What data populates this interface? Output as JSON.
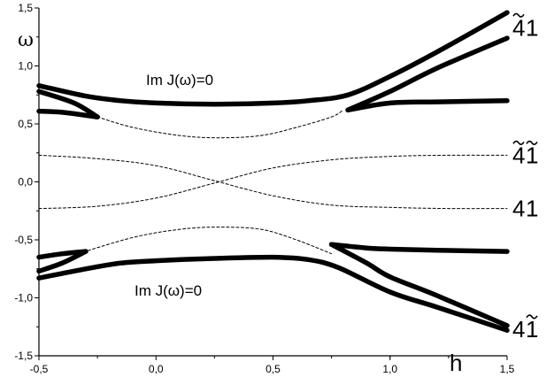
{
  "chart_data": {
    "type": "line",
    "xlabel": "h",
    "ylabel": "ω",
    "xlim": [
      -0.5,
      1.5
    ],
    "ylim": [
      -1.5,
      1.5
    ],
    "x_ticks": [
      "-0,5",
      "0,0",
      "0,5",
      "1,0",
      "1,5"
    ],
    "y_ticks": [
      "-1,5",
      "-1,0",
      "-0,5",
      "0,0",
      "0,5",
      "1,0",
      "1,5"
    ],
    "grid": false,
    "annotations": [
      {
        "text": "Im J(ω)=0",
        "x": 0.08,
        "y": 0.88
      },
      {
        "text": "Im J(ω)=0",
        "x": 0.07,
        "y": -0.97
      }
    ],
    "branch_labels": [
      {
        "base": "4",
        "second": "1",
        "tilde_first": true,
        "tilde_second": false,
        "y": 1.33
      },
      {
        "base": "4",
        "second": "1",
        "tilde_first": true,
        "tilde_second": true,
        "y": 0.23
      },
      {
        "base": "4",
        "second": "1",
        "tilde_first": false,
        "tilde_second": false,
        "y": -0.23
      },
      {
        "base": "4",
        "second": "1",
        "tilde_first": false,
        "tilde_second": true,
        "y": -1.27
      }
    ],
    "series": [
      {
        "style": "dashed",
        "x": [
          -0.5,
          -0.25,
          0.0,
          0.25,
          0.5,
          0.75,
          1.0,
          1.25,
          1.5
        ],
        "y": [
          0.23,
          0.2,
          0.14,
          0.01,
          -0.12,
          -0.2,
          -0.22,
          -0.23,
          -0.23
        ]
      },
      {
        "style": "dashed",
        "x": [
          -0.5,
          -0.25,
          0.0,
          0.25,
          0.5,
          0.75,
          1.0,
          1.25,
          1.5
        ],
        "y": [
          -0.23,
          -0.21,
          -0.14,
          -0.01,
          0.12,
          0.19,
          0.22,
          0.23,
          0.23
        ]
      },
      {
        "style": "dashed",
        "x": [
          -0.25,
          -0.1,
          0.1,
          0.27,
          0.45,
          0.6,
          0.75,
          0.8
        ],
        "y": [
          0.56,
          0.47,
          0.4,
          0.38,
          0.4,
          0.47,
          0.56,
          0.62
        ]
      },
      {
        "style": "dashed",
        "x": [
          -0.35,
          -0.1,
          0.1,
          0.27,
          0.45,
          0.6,
          0.75
        ],
        "y": [
          -0.63,
          -0.48,
          -0.41,
          -0.39,
          -0.41,
          -0.5,
          -0.62
        ]
      },
      {
        "style": "thick",
        "x": [
          -0.5,
          -0.3,
          -0.15,
          0.0,
          0.25,
          0.5,
          0.65,
          0.82,
          1.0,
          1.2,
          1.5
        ],
        "y": [
          0.83,
          0.74,
          0.7,
          0.68,
          0.67,
          0.68,
          0.7,
          0.75,
          0.91,
          1.12,
          1.46
        ]
      },
      {
        "style": "thick",
        "x": [
          -0.5,
          -0.35,
          -0.25
        ],
        "y": [
          0.78,
          0.68,
          0.56
        ]
      },
      {
        "style": "thick",
        "x": [
          -0.5,
          -0.4,
          -0.25
        ],
        "y": [
          0.61,
          0.6,
          0.56
        ]
      },
      {
        "style": "thick",
        "x": [
          0.82,
          1.0,
          1.2,
          1.5
        ],
        "y": [
          0.62,
          0.78,
          0.98,
          1.24
        ]
      },
      {
        "style": "thick",
        "x": [
          0.82,
          1.0,
          1.2,
          1.5
        ],
        "y": [
          0.62,
          0.68,
          0.69,
          0.7
        ]
      },
      {
        "style": "thick",
        "x": [
          -0.5,
          -0.3,
          -0.15,
          0.0,
          0.25,
          0.5,
          0.65,
          0.78,
          1.0,
          1.2,
          1.5
        ],
        "y": [
          -0.83,
          -0.75,
          -0.7,
          -0.68,
          -0.66,
          -0.65,
          -0.67,
          -0.74,
          -0.95,
          -1.08,
          -1.28
        ]
      },
      {
        "style": "thick",
        "x": [
          -0.5,
          -0.4,
          -0.3
        ],
        "y": [
          -0.77,
          -0.7,
          -0.6
        ]
      },
      {
        "style": "thick",
        "x": [
          -0.5,
          -0.4,
          -0.3
        ],
        "y": [
          -0.65,
          -0.62,
          -0.6
        ]
      },
      {
        "style": "thick",
        "x": [
          0.75,
          0.9,
          1.0,
          1.2,
          1.5
        ],
        "y": [
          -0.54,
          -0.7,
          -0.82,
          -0.98,
          -1.24
        ]
      },
      {
        "style": "thick",
        "x": [
          0.75,
          0.9,
          1.0,
          1.2,
          1.5
        ],
        "y": [
          -0.54,
          -0.57,
          -0.58,
          -0.59,
          -0.6
        ]
      }
    ]
  }
}
